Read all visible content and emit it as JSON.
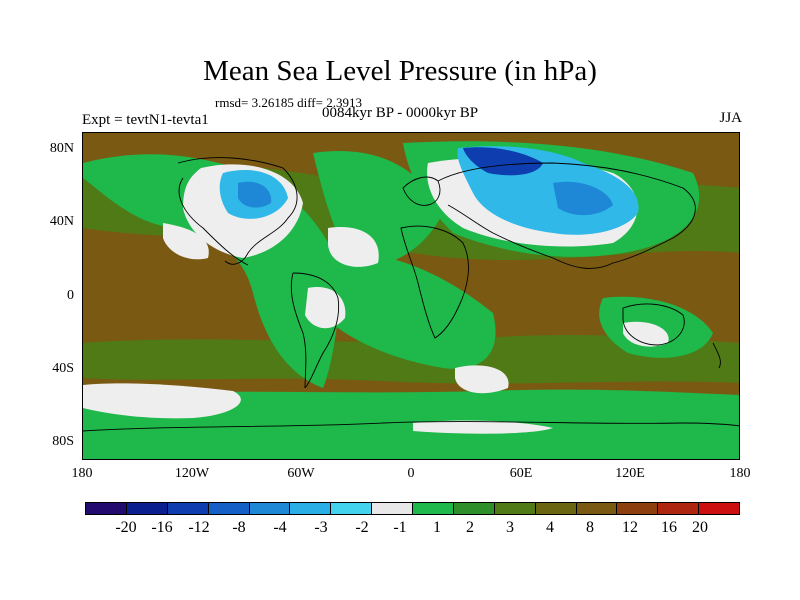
{
  "header": {
    "title": "Mean Sea Level Pressure (in hPa)",
    "stats": "rmsd= 3.26185 diff= 2.3913",
    "experiment": "Expt = tevtN1-tevta1",
    "period": "0084kyr BP - 0000kyr BP",
    "season": "JJA"
  },
  "axes": {
    "y_labels": [
      "80N",
      "40N",
      "0",
      "40S",
      "80S"
    ],
    "x_labels": [
      "180",
      "120W",
      "60W",
      "0",
      "60E",
      "120E",
      "180"
    ]
  },
  "colorbar": {
    "colors": [
      "#230a6e",
      "#0b1f8f",
      "#0d3dae",
      "#1560c7",
      "#1e88d6",
      "#29aee6",
      "#43d3ee",
      "#e8e8e8",
      "#1fb84a",
      "#2e8e2a",
      "#4f7a16",
      "#6a6510",
      "#7a5a12",
      "#8e3f0e",
      "#ad260d",
      "#cc1010"
    ],
    "labels": [
      "-20",
      "-16",
      "-12",
      "-8",
      "-4",
      "-3",
      "-2",
      "-1",
      "1",
      "2",
      "3",
      "4",
      "8",
      "12",
      "16",
      "20"
    ]
  },
  "palette": {
    "brown": "#7a5a12",
    "olive": "#4f7a16",
    "green": "#1fb84a",
    "white": "#eeeeee",
    "light_blue": "#2fb8e8",
    "mid_blue": "#1e88d6",
    "dark_blue": "#0d3dae"
  }
}
